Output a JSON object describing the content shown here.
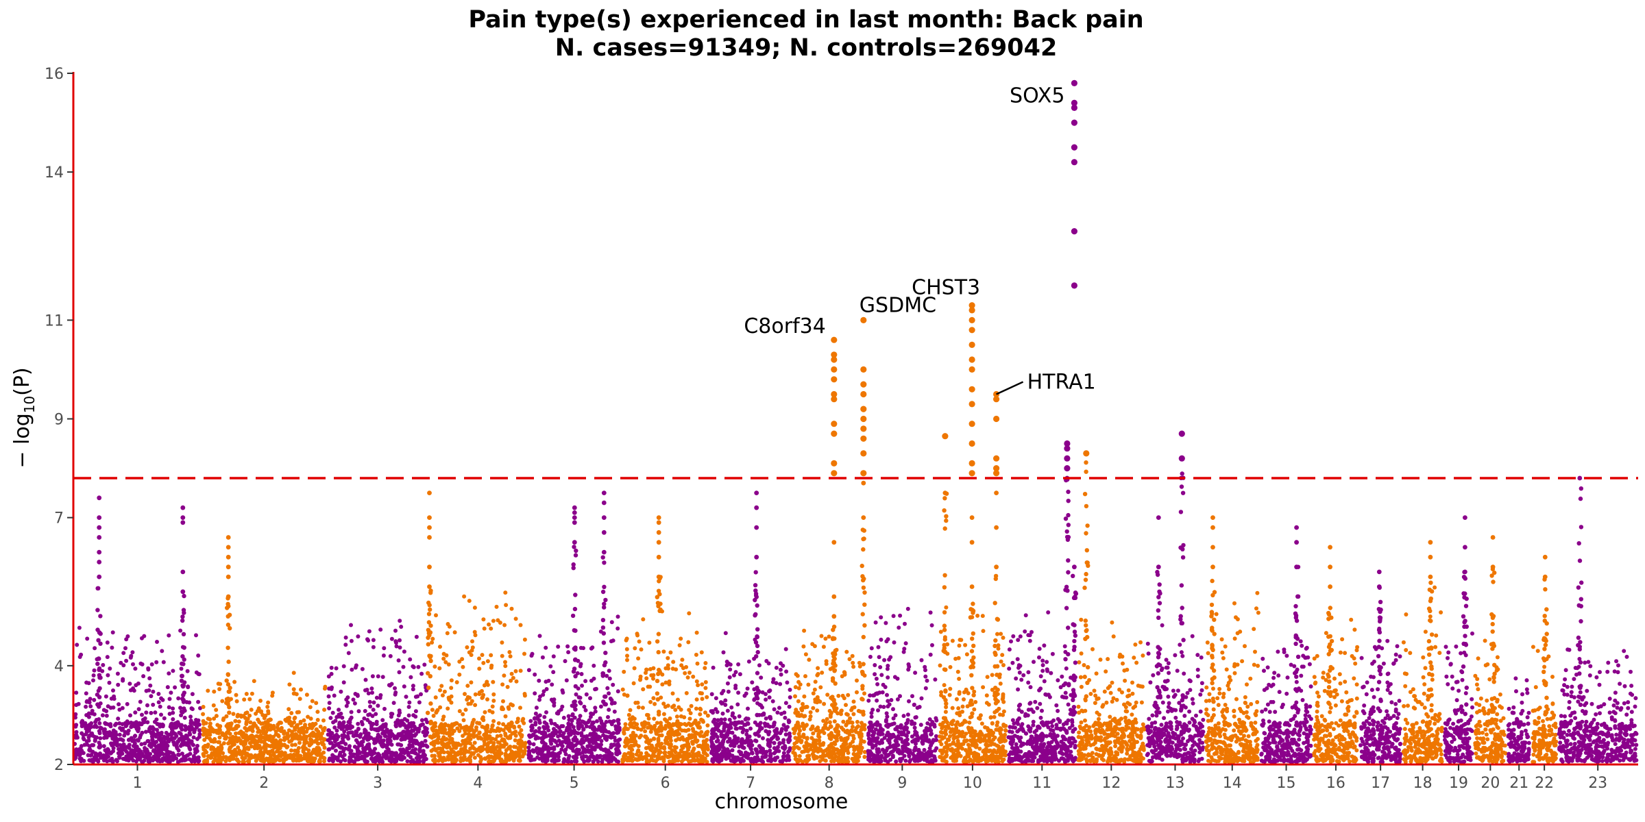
{
  "chart_data": {
    "type": "scatter",
    "subtype": "manhattan",
    "title": "Pain type(s) experienced in last month: Back pain",
    "subtitle": "N. cases=91349; N. controls=269042",
    "xlabel": "chromosome",
    "ylabel_main": "− log",
    "ylabel_sub": "10",
    "ylabel_rest": "(P)",
    "ylim": [
      2,
      16
    ],
    "yticks": [
      2,
      4,
      7,
      9,
      11,
      14,
      16
    ],
    "significance_line": 7.8,
    "colors": {
      "odd": "#8B008B",
      "even": "#EE7600",
      "axis": "#E00000",
      "threshold": "#E00000"
    },
    "chromosomes": [
      {
        "label": "1",
        "start": 0,
        "end": 248
      },
      {
        "label": "2",
        "start": 248,
        "end": 490
      },
      {
        "label": "3",
        "start": 490,
        "end": 688
      },
      {
        "label": "4",
        "start": 688,
        "end": 878
      },
      {
        "label": "5",
        "start": 878,
        "end": 1060
      },
      {
        "label": "6",
        "start": 1060,
        "end": 1231
      },
      {
        "label": "7",
        "start": 1231,
        "end": 1390
      },
      {
        "label": "8",
        "start": 1390,
        "end": 1535
      },
      {
        "label": "9",
        "start": 1535,
        "end": 1673
      },
      {
        "label": "10",
        "start": 1673,
        "end": 1807
      },
      {
        "label": "11",
        "start": 1807,
        "end": 1942
      },
      {
        "label": "12",
        "start": 1942,
        "end": 2075
      },
      {
        "label": "13",
        "start": 2075,
        "end": 2189
      },
      {
        "label": "14",
        "start": 2189,
        "end": 2296
      },
      {
        "label": "15",
        "start": 2296,
        "end": 2398
      },
      {
        "label": "16",
        "start": 2398,
        "end": 2488
      },
      {
        "label": "17",
        "start": 2488,
        "end": 2571
      },
      {
        "label": "18",
        "start": 2571,
        "end": 2651
      },
      {
        "label": "19",
        "start": 2651,
        "end": 2710
      },
      {
        "label": "20",
        "start": 2710,
        "end": 2774
      },
      {
        "label": "21",
        "start": 2774,
        "end": 2821
      },
      {
        "label": "22",
        "start": 2821,
        "end": 2872
      },
      {
        "label": "23",
        "start": 2872,
        "end": 3028
      }
    ],
    "background_peak": [
      4.9,
      3.9,
      5.2,
      5.6,
      5.0,
      5.2,
      4.8,
      5.0,
      5.3,
      5.4,
      5.2,
      5.1,
      4.9,
      5.5,
      4.9,
      5.0,
      4.9,
      5.6,
      5.0,
      4.6,
      4.1,
      4.6,
      4.6
    ],
    "peaks": [
      {
        "pos": 50,
        "values": [
          5.8,
          6.1,
          6.3,
          6.6,
          6.8,
          7.0,
          7.4
        ]
      },
      {
        "pos": 212,
        "values": [
          5.5,
          5.9,
          6.9,
          7.0,
          7.2
        ]
      },
      {
        "pos": 300,
        "values": [
          5.4,
          5.8,
          6.0,
          6.2,
          6.4,
          6.6
        ]
      },
      {
        "pos": 689,
        "values": [
          5.6,
          6.0,
          6.6,
          6.8,
          7.0,
          7.5
        ]
      },
      {
        "pos": 970,
        "values": [
          6.5,
          6.9,
          7.0,
          7.1,
          7.2
        ]
      },
      {
        "pos": 1027,
        "values": [
          6.3,
          6.7,
          7.0,
          7.3,
          7.5
        ]
      },
      {
        "pos": 1133,
        "values": [
          5.8,
          6.2,
          6.5,
          6.7,
          6.9,
          7.0
        ]
      },
      {
        "pos": 1322,
        "values": [
          6.2,
          6.8,
          7.2,
          7.5
        ]
      },
      {
        "pos": 1472,
        "values": [
          5.0,
          5.4,
          6.5,
          7.9,
          8.1,
          8.7,
          8.9,
          9.4,
          9.5,
          9.8,
          10.0,
          10.2,
          10.3,
          10.6
        ]
      },
      {
        "pos": 1529,
        "values": [
          7.0,
          7.7,
          7.9,
          8.3,
          8.6,
          8.8,
          9.0,
          9.2,
          9.5,
          9.7,
          10.0,
          11.0
        ]
      },
      {
        "pos": 1687,
        "values": [
          7.5,
          8.65
        ]
      },
      {
        "pos": 1739,
        "values": [
          5.6,
          6.5,
          7.0,
          7.9,
          8.1,
          8.5,
          8.9,
          9.3,
          9.6,
          10.0,
          10.2,
          10.5,
          10.8,
          11.0,
          11.2,
          11.3
        ]
      },
      {
        "pos": 1786,
        "values": [
          6.0,
          6.8,
          7.5,
          7.9,
          8.0,
          8.2,
          9.0,
          9.4,
          9.5
        ]
      },
      {
        "pos": 1923,
        "values": [
          7.8,
          8.0,
          8.2,
          8.4,
          8.5
        ]
      },
      {
        "pos": 1937,
        "values": [
          6.0,
          11.7,
          12.8,
          14.2,
          14.5,
          15.0,
          15.3,
          15.4,
          15.8
        ]
      },
      {
        "pos": 1960,
        "values": [
          8.3
        ]
      },
      {
        "pos": 2100,
        "values": [
          6.0,
          7.0
        ]
      },
      {
        "pos": 2145,
        "values": [
          8.2,
          8.7
        ]
      },
      {
        "pos": 2205,
        "values": [
          6.0,
          6.4,
          6.8,
          7.0
        ]
      },
      {
        "pos": 2367,
        "values": [
          6.0,
          6.5,
          6.8
        ]
      },
      {
        "pos": 2432,
        "values": [
          5.6,
          6.0,
          6.4
        ]
      },
      {
        "pos": 2527,
        "values": [
          5.6,
          5.9
        ]
      },
      {
        "pos": 2626,
        "values": [
          5.8,
          6.2,
          6.5
        ]
      },
      {
        "pos": 2693,
        "values": [
          5.9,
          6.4,
          7.0
        ]
      },
      {
        "pos": 2747,
        "values": [
          6.0,
          6.6
        ]
      },
      {
        "pos": 2848,
        "values": [
          5.8,
          6.2
        ]
      },
      {
        "pos": 2915,
        "values": [
          7.8
        ]
      }
    ],
    "gene_labels": [
      {
        "text": "C8orf34",
        "pos": 1472,
        "y": 10.6
      },
      {
        "text": "GSDMC",
        "pos": 1529,
        "y": 11.0
      },
      {
        "text": "CHST3",
        "pos": 1739,
        "y": 11.3
      },
      {
        "text": "HTRA1",
        "pos": 1786,
        "y": 9.5
      },
      {
        "text": "SOX5",
        "pos": 1937,
        "y": 15.8
      }
    ]
  }
}
